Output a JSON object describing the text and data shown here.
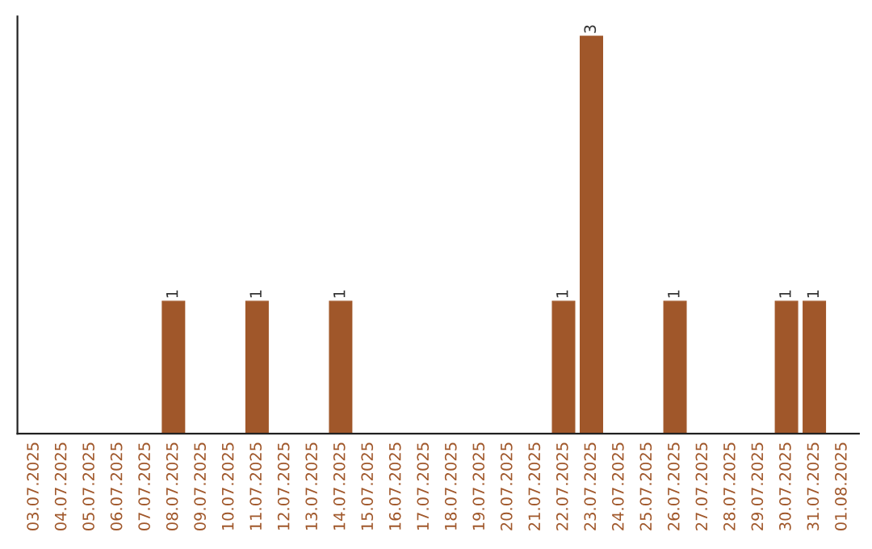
{
  "chart_data": {
    "type": "bar",
    "categories": [
      "03.07.2025",
      "04.07.2025",
      "05.07.2025",
      "06.07.2025",
      "07.07.2025",
      "08.07.2025",
      "09.07.2025",
      "10.07.2025",
      "11.07.2025",
      "12.07.2025",
      "13.07.2025",
      "14.07.2025",
      "15.07.2025",
      "16.07.2025",
      "17.07.2025",
      "18.07.2025",
      "19.07.2025",
      "20.07.2025",
      "21.07.2025",
      "22.07.2025",
      "23.07.2025",
      "24.07.2025",
      "25.07.2025",
      "26.07.2025",
      "27.07.2025",
      "28.07.2025",
      "29.07.2025",
      "30.07.2025",
      "31.07.2025",
      "01.08.2025"
    ],
    "values": [
      0,
      0,
      0,
      0,
      0,
      1,
      0,
      0,
      1,
      0,
      0,
      1,
      0,
      0,
      0,
      0,
      0,
      0,
      0,
      1,
      3,
      0,
      0,
      1,
      0,
      0,
      0,
      1,
      1,
      0
    ],
    "value_labels": [
      null,
      null,
      null,
      null,
      null,
      "1",
      null,
      null,
      "1",
      null,
      null,
      "1",
      null,
      null,
      null,
      null,
      null,
      null,
      null,
      "1",
      "3",
      null,
      null,
      "1",
      null,
      null,
      null,
      "1",
      "1",
      null
    ],
    "color": "#a0572a",
    "tick_labels": "x",
    "grid": false,
    "legend": false
  }
}
